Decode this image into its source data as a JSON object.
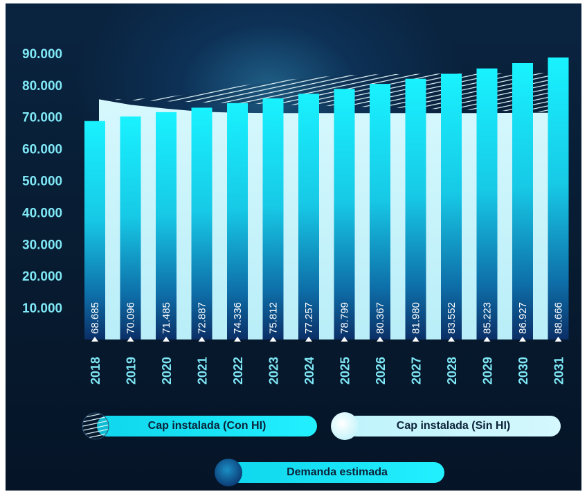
{
  "chart_data": {
    "type": "bar",
    "categories": [
      "2018",
      "2019",
      "2020",
      "2021",
      "2022",
      "2023",
      "2024",
      "2025",
      "2026",
      "2027",
      "2028",
      "2029",
      "2030",
      "2031"
    ],
    "series": [
      {
        "name": "Demanda estimada",
        "values": [
          68685,
          70096,
          71485,
          72887,
          74336,
          75812,
          77257,
          78799,
          80367,
          81980,
          83552,
          85223,
          86927,
          88666
        ]
      },
      {
        "name": "Cap instalada (Sin HI)",
        "values": [
          75500,
          73800,
          72600,
          71600,
          71300,
          71200,
          71200,
          71200,
          71200,
          71200,
          71200,
          71200,
          71300,
          71300
        ]
      },
      {
        "name": "Cap instalada (Con HI)",
        "values": [
          75500,
          75500,
          76200,
          77800,
          79600,
          81200,
          82300,
          83100,
          83400,
          83500,
          83600,
          83600,
          83700,
          83800
        ]
      }
    ],
    "data_labels": [
      "68.685",
      "70.096",
      "71.485",
      "72.887",
      "74.336",
      "75.812",
      "77.257",
      "78.799",
      "80.367",
      "81.980",
      "83.552",
      "85.223",
      "86.927",
      "88.666"
    ],
    "y_ticks": [
      "10.000",
      "20.000",
      "30.000",
      "40.000",
      "50.000",
      "60.000",
      "70.000",
      "80.000",
      "90.000"
    ],
    "y_tick_values": [
      10000,
      20000,
      30000,
      40000,
      50000,
      60000,
      70000,
      80000,
      90000
    ],
    "ylim": [
      0,
      91500
    ],
    "grid": false,
    "legend_position": "bottom",
    "colors": {
      "demand_top": "#19f2ff",
      "demand_bottom": "#0b2f66",
      "capacity_sin": "#c8f5fb",
      "capacity_con_hatch": "#e6fbff",
      "axis_text": "#7fe7f5",
      "background": "#071a2f"
    }
  },
  "legend": {
    "con_hi": "Cap instalada (Con HI)",
    "sin_hi": "Cap instalada (Sin HI)",
    "demanda": "Demanda estimada"
  }
}
